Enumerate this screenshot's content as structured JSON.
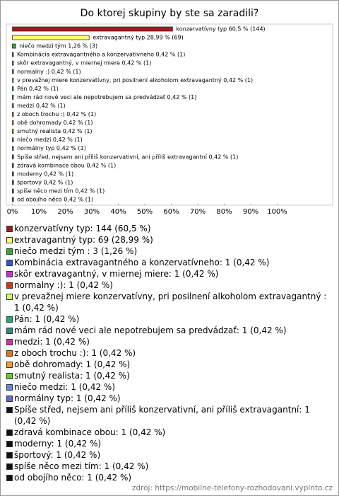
{
  "chart_data": {
    "type": "bar",
    "orientation": "horizontal",
    "title": "Do ktorej skupiny by ste sa zaradili?",
    "values": [
      60.5,
      28.99,
      1.26,
      0.42,
      0.42,
      0.42,
      0.42,
      0.42,
      0.42,
      0.42,
      0.42,
      0.42,
      0.42,
      0.42,
      0.42,
      0.42,
      0.42,
      0.42,
      0.42,
      0.42,
      0.42
    ],
    "value_labels": [
      "konzervatívny typ 60,5 % (144)",
      "extravagantný typ 28,99 % (69)",
      "niečo medzi tým  1,26 % (3)",
      "Kombinácia extravagantného a konzervatívneho 0,42 % (1)",
      "skôr extravagantný, v miernej miere 0,42 % (1)",
      "normalny :) 0,42 % (1)",
      "v prevažnej miere konzervatívny, pri posilnení alkoholom extravagantný  0,42 % (1)",
      "Pán 0,42 % (1)",
      "mám rád nové veci ale nepotrebujem sa predvádzať 0,42 % (1)",
      "medzi 0,42 % (1)",
      "z oboch trochu :) 0,42 % (1)",
      "obě dohromady 0,42 % (1)",
      "smutný realista 0,42 % (1)",
      "niečo medzi 0,42 % (1)",
      "normálny typ 0,42 % (1)",
      "Spíše střed, nejsem ani příliš konzervativní, ani příliš extravagantní 0,42 % (1)",
      "zdravá kombinace obou 0,42 % (1)",
      "moderny 0,42 % (1)",
      "športový 0,42 % (1)",
      "spíše něco mezi tím 0,42 % (1)",
      "od obojího něco 0,42 % (1)"
    ],
    "legend_labels": [
      "konzervatívny typ: 144 (60,5 %)",
      "extravagantný typ: 69 (28,99 %)",
      "niečo medzi tým : 3 (1,26 %)",
      "Kombinácia extravagantného a konzervatívneho: 1 (0,42 %)",
      "skôr extravagantný, v miernej miere: 1 (0,42 %)",
      "normalny :): 1 (0,42 %)",
      "v prevažnej miere konzervatívny, pri posilnení alkoholom extravagantný : 1 (0,42 %)",
      "Pán: 1 (0,42 %)",
      "mám rád nové veci ale nepotrebujem sa predvádzať: 1 (0,42 %)",
      "medzi: 1 (0,42 %)",
      "z oboch trochu :): 1 (0,42 %)",
      "obě dohromady: 1 (0,42 %)",
      "smutný realista: 1 (0,42 %)",
      "niečo medzi: 1 (0,42 %)",
      "normálny typ: 1 (0,42 %)",
      "Spíše střed, nejsem ani příliš konzervativní, ani příliš extravagantní: 1 (0,42 %)",
      "zdravá kombinace obou: 1 (0,42 %)",
      "moderny: 1 (0,42 %)",
      "športový: 1 (0,42 %)",
      "spíše něco mezi tím: 1 (0,42 %)",
      "od obojího něco: 1 (0,42 %)"
    ],
    "colors": [
      "#a01c1c",
      "#ffff66",
      "#33aa33",
      "#3355cc",
      "#cc33cc",
      "#dd3311",
      "#ccff66",
      "#22aa77",
      "#338888",
      "#cc33aa",
      "#dd7722",
      "#ff9933",
      "#66cc33",
      "#6688dd",
      "#6666cc",
      "#111111",
      "#111111",
      "#111111",
      "#111111",
      "#111111",
      "#111111"
    ],
    "xlim": [
      0,
      100
    ],
    "xticks": [
      {
        "value": 0,
        "label": "0%"
      },
      {
        "value": 10,
        "label": "10%"
      },
      {
        "value": 20,
        "label": "20%"
      },
      {
        "value": 30,
        "label": "30%"
      },
      {
        "value": 40,
        "label": "40%"
      },
      {
        "value": 50,
        "label": "50%"
      },
      {
        "value": 60,
        "label": "60%"
      },
      {
        "value": 70,
        "label": "70%"
      },
      {
        "value": 80,
        "label": "80%"
      },
      {
        "value": 90,
        "label": "90%"
      },
      {
        "value": 100,
        "label": "100%"
      }
    ],
    "grid": false,
    "source": "zdroj: https://mobilne-telefony-rozhodovani.vyplnto.cz"
  }
}
